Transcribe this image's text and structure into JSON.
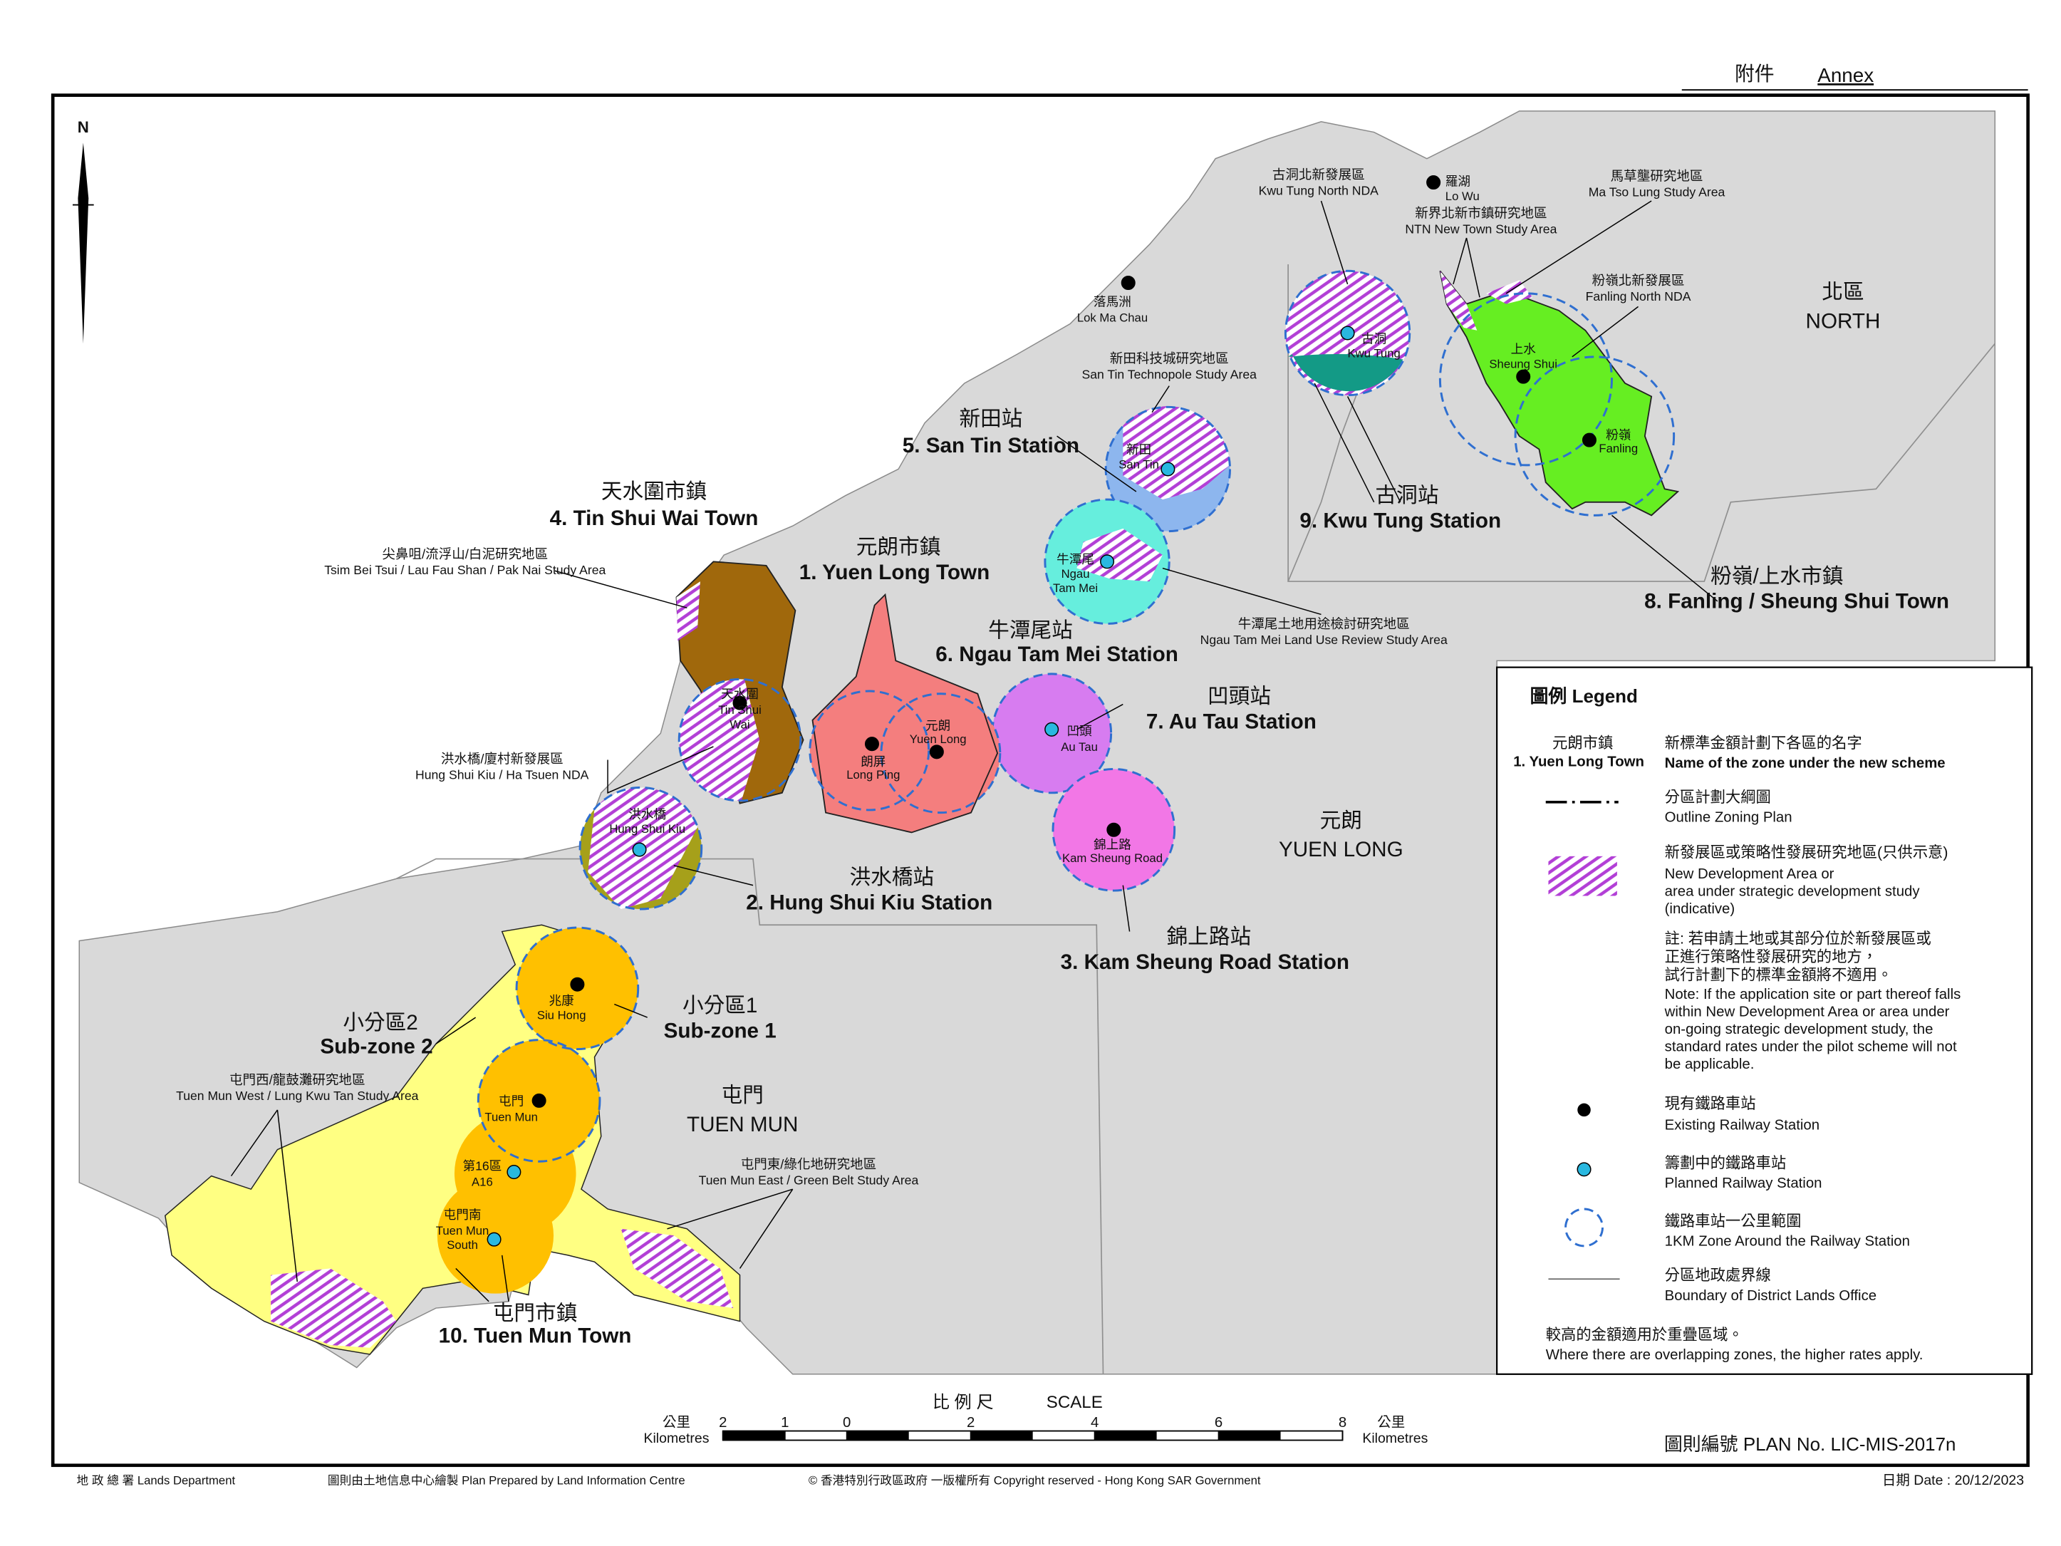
{
  "annex": {
    "zh": "附件",
    "en": "Annex"
  },
  "north_arrow": "N",
  "districts": [
    {
      "zh": "北區",
      "en": "NORTH"
    },
    {
      "zh": "元朗",
      "en": "YUEN LONG"
    },
    {
      "zh": "屯門",
      "en": "TUEN MUN"
    }
  ],
  "zones": [
    {
      "zh": "元朗市鎮",
      "en": "1. Yuen Long Town"
    },
    {
      "zh": "洪水橋站",
      "en": "2. Hung Shui Kiu Station"
    },
    {
      "zh": "錦上路站",
      "en": "3. Kam Sheung Road Station"
    },
    {
      "zh": "天水圍市鎮",
      "en": "4. Tin Shui Wai Town"
    },
    {
      "zh": "新田站",
      "en": "5. San Tin Station"
    },
    {
      "zh": "牛潭尾站",
      "en": "6. Ngau Tam Mei Station"
    },
    {
      "zh": "凹頭站",
      "en": "7. Au Tau Station"
    },
    {
      "zh": "粉嶺/上水市鎮",
      "en": "8. Fanling / Sheung Shui Town"
    },
    {
      "zh": "古洞站",
      "en": "9. Kwu Tung Station"
    },
    {
      "zh": "屯門市鎮",
      "en": "10. Tuen Mun Town"
    },
    {
      "zh": "小分區1",
      "en": "Sub-zone 1"
    },
    {
      "zh": "小分區2",
      "en": "Sub-zone 2"
    }
  ],
  "stations": [
    {
      "zh": "落馬洲",
      "en": [
        "Lok Ma Chau"
      ]
    },
    {
      "zh": "羅湖",
      "en": [
        "Lo Wu"
      ]
    },
    {
      "zh": "上水",
      "en": [
        "Sheung Shui"
      ]
    },
    {
      "zh": "粉嶺",
      "en": [
        "Fanling"
      ]
    },
    {
      "zh": "古洞",
      "en": [
        "Kwu Tung"
      ]
    },
    {
      "zh": "新田",
      "en": [
        "San Tin"
      ]
    },
    {
      "zh": "牛潭尾",
      "en": [
        "Ngau",
        "Tam Mei"
      ]
    },
    {
      "zh": "凹頭",
      "en": [
        "Au Tau"
      ]
    },
    {
      "zh": "元朗",
      "en": [
        "Yuen Long"
      ]
    },
    {
      "zh": "朗屏",
      "en": [
        "Long Ping"
      ]
    },
    {
      "zh": "天水圍",
      "en": [
        "Tin Shui",
        "Wai"
      ]
    },
    {
      "zh": "洪水橋",
      "en": [
        "Hung Shui Kiu"
      ]
    },
    {
      "zh": "錦上路",
      "en": [
        "Kam Sheung Road"
      ]
    },
    {
      "zh": "兆康",
      "en": [
        "Siu Hong"
      ]
    },
    {
      "zh": "屯門",
      "en": [
        "Tuen Mun"
      ]
    },
    {
      "zh": "第16區",
      "en": [
        "A16"
      ]
    },
    {
      "zh": "屯門南",
      "en": [
        "Tuen Mun",
        "South"
      ]
    }
  ],
  "study_areas": [
    {
      "zh": "古洞北新發展區",
      "en": "Kwu Tung North NDA"
    },
    {
      "zh": "新界北新市鎮研究地區",
      "en": "NTN New Town Study Area"
    },
    {
      "zh": "馬草壟研究地區",
      "en": "Ma Tso Lung Study Area"
    },
    {
      "zh": "粉嶺北新發展區",
      "en": "Fanling North NDA"
    },
    {
      "zh": "新田科技城研究地區",
      "en": "San Tin Technopole Study Area"
    },
    {
      "zh": "牛潭尾土地用途檢討研究地區",
      "en": "Ngau Tam Mei Land Use Review Study Area"
    },
    {
      "zh": "尖鼻咀/流浮山/白泥研究地區",
      "en": "Tsim Bei Tsui / Lau Fau Shan / Pak Nai Study Area"
    },
    {
      "zh": "洪水橋/廈村新發展區",
      "en": "Hung Shui Kiu / Ha Tsuen NDA"
    },
    {
      "zh": "屯門西/龍鼓灘研究地區",
      "en": "Tuen Mun West / Lung Kwu Tan Study Area"
    },
    {
      "zh": "屯門東/綠化地研究地區",
      "en": "Tuen Mun East / Green Belt Study Area"
    }
  ],
  "legend": {
    "title": "圖例 Legend",
    "sample": {
      "zh": "元朗市鎮",
      "en": "1. Yuen Long Town"
    },
    "zone_name": {
      "zh": "新標準金額計劃下各區的名字",
      "en": "Name of the zone under the new scheme"
    },
    "ozp": {
      "zh": "分區計劃大綱圖",
      "en": "Outline Zoning Plan"
    },
    "nda": {
      "zh": "新發展區或策略性發展研究地區(只供示意)",
      "en": [
        "New Development Area or",
        "area under strategic development study",
        "(indicative)"
      ]
    },
    "note": {
      "zh": [
        "註: 若申請土地或其部分位於新發展區或",
        "正進行策略性發展研究的地方，",
        "試行計劃下的標準金額將不適用。"
      ],
      "en": [
        "Note: If the application site or part thereof falls",
        "within New Development Area or area under",
        "on-going strategic development study, the",
        "standard rates under the pilot scheme will not",
        "be applicable."
      ]
    },
    "existing": {
      "zh": "現有鐵路車站",
      "en": "Existing Railway Station"
    },
    "planned": {
      "zh": "籌劃中的鐵路車站",
      "en": "Planned Railway Station"
    },
    "zone_1km": {
      "zh": "鐵路車站一公里範圍",
      "en": "1KM Zone Around the Railway Station"
    },
    "boundary": {
      "zh": "分區地政處界線",
      "en": "Boundary of District Lands Office"
    },
    "footnote": {
      "zh": "較高的金額適用於重疊區域。",
      "en": "Where there are overlapping zones, the higher rates apply."
    }
  },
  "scale": {
    "zh": "比 例 尺",
    "en": "SCALE",
    "unit_zh": "公里",
    "unit_en": "Kilometres",
    "ticks": [
      {
        "value": -2,
        "label": "2"
      },
      {
        "value": -1,
        "label": "1"
      },
      0,
      2,
      4,
      6,
      8
    ]
  },
  "plan_no": "圖則編號  PLAN  No.  LIC-MIS-2017n",
  "footer": {
    "dept": "地 政 總 署  Lands  Department",
    "prepared": "圖則由土地信息中心繪製  Plan  Prepared  by  Land  Information  Centre",
    "copyright": "© 香港特別行政區政府 一版權所有  Copyright reserved - Hong Kong SAR Government",
    "date": "日期 Date : 20/12/2023"
  }
}
